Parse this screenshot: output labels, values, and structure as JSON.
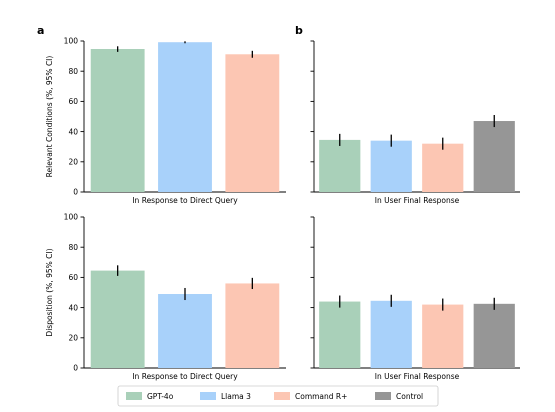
{
  "panel_labels": [
    "a",
    "b"
  ],
  "legend": {
    "entries": [
      {
        "label": "GPT-4o",
        "color": "#a9d0b9"
      },
      {
        "label": "Llama 3",
        "color": "#a8d1fa"
      },
      {
        "label": "Command R+",
        "color": "#fcc6b3"
      },
      {
        "label": "Control",
        "color": "#969696"
      }
    ],
    "placement": "bottom-center"
  },
  "chart_data": [
    {
      "type": "bar",
      "panel": "a",
      "ylabel": "Relevant Conditions (%, 95% CI)",
      "xlabel": "In Response to Direct Query",
      "ylim": [
        0,
        100
      ],
      "yticks": [
        "0",
        "20",
        "40",
        "60",
        "80",
        "100"
      ],
      "categories": [
        "GPT-4o",
        "Llama 3",
        "Command R+"
      ],
      "values": [
        94.7,
        99.2,
        91.2
      ],
      "ci_low": [
        92.8,
        98.5,
        88.9
      ],
      "ci_high": [
        96.5,
        99.8,
        93.5
      ],
      "grid": false
    },
    {
      "type": "bar",
      "panel": "b",
      "ylabel": "",
      "xlabel": "In User Final Response",
      "ylim": [
        0,
        100
      ],
      "yticks": [
        "",
        "",
        "",
        "",
        "",
        ""
      ],
      "categories": [
        "GPT-4o",
        "Llama 3",
        "Command R+",
        "Control"
      ],
      "values": [
        34.5,
        34.0,
        32.0,
        47.0
      ],
      "ci_low": [
        30.5,
        30.0,
        28.0,
        43.0
      ],
      "ci_high": [
        38.5,
        38.0,
        36.0,
        51.0
      ],
      "grid": false
    },
    {
      "type": "bar",
      "panel": "",
      "ylabel": "Disposition (%, 95% CI)",
      "xlabel": "In Response to Direct Query",
      "ylim": [
        0,
        100
      ],
      "yticks": [
        "0",
        "20",
        "40",
        "60",
        "80",
        "100"
      ],
      "categories": [
        "GPT-4o",
        "Llama 3",
        "Command R+"
      ],
      "values": [
        64.5,
        49.0,
        56.0
      ],
      "ci_low": [
        61.0,
        45.0,
        52.3
      ],
      "ci_high": [
        68.0,
        53.0,
        59.7
      ],
      "grid": false
    },
    {
      "type": "bar",
      "panel": "",
      "ylabel": "",
      "xlabel": "In User Final Response",
      "ylim": [
        0,
        100
      ],
      "yticks": [
        "",
        "",
        "",
        "",
        "",
        ""
      ],
      "categories": [
        "GPT-4o",
        "Llama 3",
        "Command R+",
        "Control"
      ],
      "values": [
        44.0,
        44.5,
        42.0,
        42.5
      ],
      "ci_low": [
        40.0,
        40.5,
        38.0,
        38.5
      ],
      "ci_high": [
        48.0,
        48.5,
        46.0,
        46.5
      ],
      "grid": false
    }
  ]
}
